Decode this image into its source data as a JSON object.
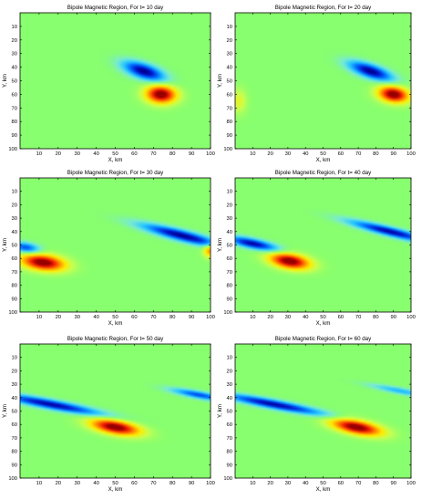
{
  "chart_data": [
    {
      "type": "heatmap",
      "title": "Bipole Magnetic Region, For t= 10  day",
      "xlabel": "X, km",
      "ylabel": "Y, km",
      "xlim": [
        0,
        100
      ],
      "ylim": [
        0,
        100
      ],
      "y_reversed": true,
      "x_ticks": [
        10,
        20,
        30,
        40,
        50,
        60,
        70,
        80,
        90,
        100
      ],
      "y_ticks": [
        10,
        20,
        30,
        40,
        50,
        60,
        70,
        80,
        90,
        100
      ],
      "background": "#88ff6e",
      "blobs": [
        {
          "polarity": "negative",
          "cx": 65,
          "cy": 43,
          "sx": 8,
          "sy": 3.5,
          "angle": 28,
          "amp": 1.0
        },
        {
          "polarity": "positive",
          "cx": 74,
          "cy": 60,
          "sx": 5.5,
          "sy": 4.5,
          "angle": 10,
          "amp": 1.1
        }
      ]
    },
    {
      "type": "heatmap",
      "title": "Bipole Magnetic Region, For t= 20  day",
      "xlabel": "X, km",
      "ylabel": "Y, km",
      "xlim": [
        0,
        100
      ],
      "ylim": [
        0,
        100
      ],
      "y_reversed": true,
      "x_ticks": [
        10,
        20,
        30,
        40,
        50,
        60,
        70,
        80,
        90,
        100
      ],
      "y_ticks": [
        10,
        20,
        30,
        40,
        50,
        60,
        70,
        80,
        90,
        100
      ],
      "background": "#88ff6e",
      "blobs": [
        {
          "polarity": "negative",
          "cx": 77,
          "cy": 43,
          "sx": 9,
          "sy": 3.2,
          "angle": 25,
          "amp": 1.0
        },
        {
          "polarity": "positive",
          "cx": 90,
          "cy": 60,
          "sx": 6,
          "sy": 4,
          "angle": 15,
          "amp": 1.1
        },
        {
          "polarity": "positive",
          "cx": 2,
          "cy": 65,
          "sx": 3,
          "sy": 6,
          "angle": 0,
          "amp": 0.25
        }
      ]
    },
    {
      "type": "heatmap",
      "title": "Bipole Magnetic Region, For t= 30  day",
      "xlabel": "X, km",
      "ylabel": "Y, km",
      "xlim": [
        0,
        100
      ],
      "ylim": [
        0,
        100
      ],
      "y_reversed": true,
      "x_ticks": [
        10,
        20,
        30,
        40,
        50,
        60,
        70,
        80,
        90,
        100
      ],
      "y_ticks": [
        10,
        20,
        30,
        40,
        50,
        60,
        70,
        80,
        90,
        100
      ],
      "background": "#88ff6e",
      "blobs": [
        {
          "polarity": "negative",
          "cx": 85,
          "cy": 43,
          "sx": 15,
          "sy": 2.6,
          "angle": 20,
          "amp": 1.0
        },
        {
          "polarity": "negative",
          "cx": 3,
          "cy": 52,
          "sx": 5,
          "sy": 2.5,
          "angle": 15,
          "amp": 0.7
        },
        {
          "polarity": "positive",
          "cx": 12,
          "cy": 63,
          "sx": 8,
          "sy": 4,
          "angle": 12,
          "amp": 1.1
        },
        {
          "polarity": "positive",
          "cx": 100,
          "cy": 54,
          "sx": 2.5,
          "sy": 3.5,
          "angle": 0,
          "amp": 0.6
        }
      ]
    },
    {
      "type": "heatmap",
      "title": "Bipole Magnetic Region, For t= 40  day",
      "xlabel": "X, km",
      "ylabel": "Y, km",
      "xlim": [
        0,
        100
      ],
      "ylim": [
        0,
        100
      ],
      "y_reversed": true,
      "x_ticks": [
        10,
        20,
        30,
        40,
        50,
        60,
        70,
        80,
        90,
        100
      ],
      "y_ticks": [
        10,
        20,
        30,
        40,
        50,
        60,
        70,
        80,
        90,
        100
      ],
      "background": "#88ff6e",
      "blobs": [
        {
          "polarity": "negative",
          "cx": 88,
          "cy": 40,
          "sx": 16,
          "sy": 2.2,
          "angle": 18,
          "amp": 0.95
        },
        {
          "polarity": "negative",
          "cx": 10,
          "cy": 49,
          "sx": 10,
          "sy": 2.4,
          "angle": 16,
          "amp": 0.95
        },
        {
          "polarity": "positive",
          "cx": 31,
          "cy": 62,
          "sx": 8,
          "sy": 3.8,
          "angle": 14,
          "amp": 1.1
        }
      ]
    },
    {
      "type": "heatmap",
      "title": "Bipole Magnetic Region, For t= 50  day",
      "xlabel": "X, km",
      "ylabel": "Y, km",
      "xlim": [
        0,
        100
      ],
      "ylim": [
        0,
        100
      ],
      "y_reversed": true,
      "x_ticks": [
        10,
        20,
        30,
        40,
        50,
        60,
        70,
        80,
        90,
        100
      ],
      "y_ticks": [
        10,
        20,
        30,
        40,
        50,
        60,
        70,
        80,
        90,
        100
      ],
      "background": "#88ff6e",
      "blobs": [
        {
          "polarity": "negative",
          "cx": 16,
          "cy": 45,
          "sx": 19,
          "sy": 2.3,
          "angle": 15,
          "amp": 0.95
        },
        {
          "polarity": "negative",
          "cx": 94,
          "cy": 38,
          "sx": 10,
          "sy": 1.8,
          "angle": 15,
          "amp": 0.7
        },
        {
          "polarity": "positive",
          "cx": 50,
          "cy": 62,
          "sx": 9,
          "sy": 3.5,
          "angle": 15,
          "amp": 1.1
        }
      ]
    },
    {
      "type": "heatmap",
      "title": "Bipole Magnetic Region, For t= 60  day",
      "xlabel": "X, km",
      "ylabel": "Y, km",
      "xlim": [
        0,
        100
      ],
      "ylim": [
        0,
        100
      ],
      "y_reversed": true,
      "x_ticks": [
        10,
        20,
        30,
        40,
        50,
        60,
        70,
        80,
        90,
        100
      ],
      "y_ticks": [
        10,
        20,
        30,
        40,
        50,
        60,
        70,
        80,
        90,
        100
      ],
      "background": "#88ff6e",
      "blobs": [
        {
          "polarity": "negative",
          "cx": 22,
          "cy": 45,
          "sx": 20,
          "sy": 2.2,
          "angle": 14,
          "amp": 0.95
        },
        {
          "polarity": "negative",
          "cx": 94,
          "cy": 35,
          "sx": 12,
          "sy": 1.6,
          "angle": 14,
          "amp": 0.4
        },
        {
          "polarity": "positive",
          "cx": 69,
          "cy": 62,
          "sx": 10,
          "sy": 3.5,
          "angle": 15,
          "amp": 1.1
        }
      ]
    }
  ]
}
